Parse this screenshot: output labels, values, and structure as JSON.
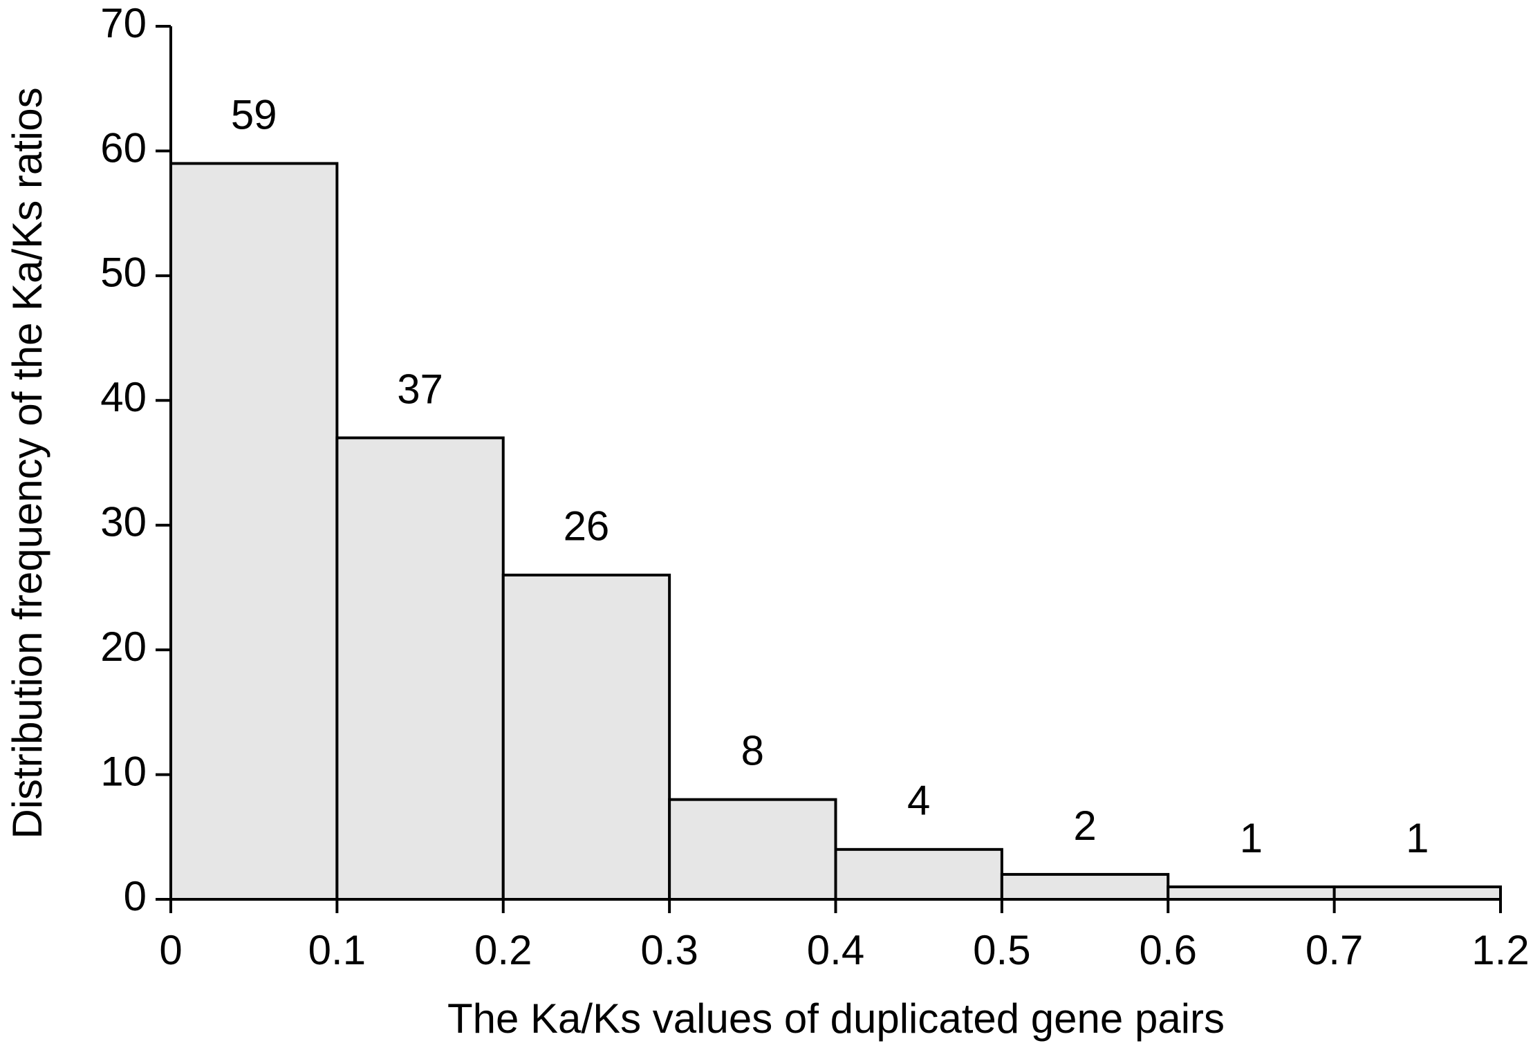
{
  "chart_data": {
    "type": "histogram",
    "x_label": "The Ka/Ks values of duplicated gene pairs",
    "y_label": "Distribution frequency of the Ka/Ks ratios",
    "bins": [
      0,
      0.1,
      0.2,
      0.3,
      0.4,
      0.5,
      0.6,
      0.7,
      1.2
    ],
    "values": [
      59,
      37,
      26,
      8,
      4,
      2,
      1,
      1
    ],
    "color": "#e6e6e6",
    "ylim": [
      0,
      70
    ],
    "yticks": [
      0,
      10,
      20,
      30,
      40,
      50,
      60,
      70
    ],
    "grid": false
  }
}
